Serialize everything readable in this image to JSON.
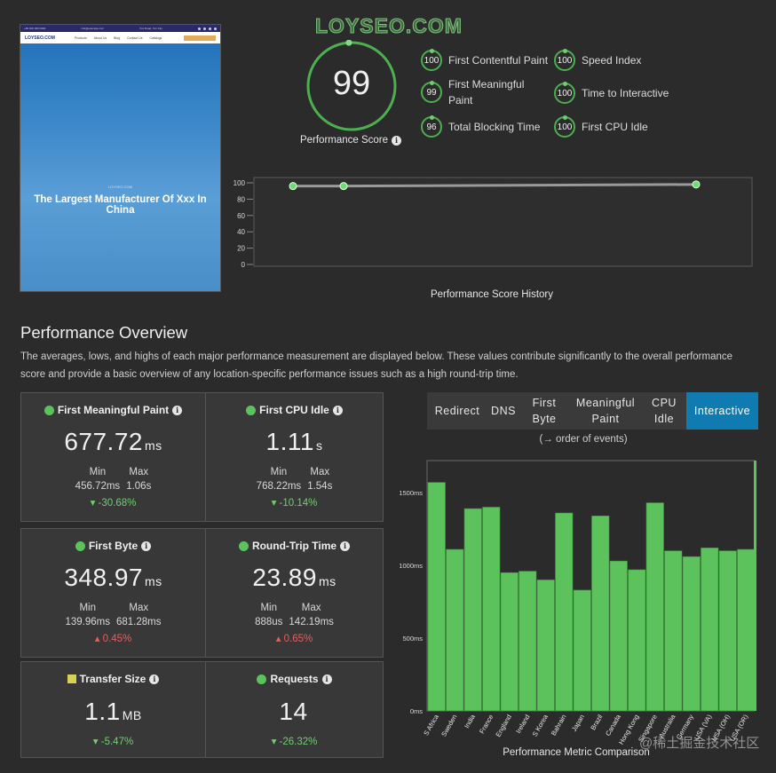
{
  "preview": {
    "topbar_left": "+86 000 000 0000",
    "topbar_mid": "info@example.com",
    "topbar_addr": "Xxx Road, Xxx City",
    "logo": "LOYSEO.COM",
    "nav": [
      "Products",
      "About Us",
      "Blog",
      "Contact Us",
      "Catalogs"
    ],
    "hero_kicker": "LOYSEO.COM",
    "hero_title": "The Largest Manufacturer Of Xxx In China"
  },
  "watermark_top": "LOYSEO.COM",
  "score": {
    "value": "99",
    "label": "Performance Score",
    "fraction": 0.99
  },
  "metrics": [
    {
      "score": "100",
      "label": "First Contentful Paint"
    },
    {
      "score": "99",
      "label": "First Meaningful Paint"
    },
    {
      "score": "96",
      "label": "Total Blocking Time"
    },
    {
      "score": "100",
      "label": "Speed Index"
    },
    {
      "score": "100",
      "label": "Time to Interactive"
    },
    {
      "score": "100",
      "label": "First CPU Idle"
    }
  ],
  "history": {
    "title": "Performance Score History",
    "yticks": [
      "100",
      "80",
      "60",
      "40",
      "20",
      "0"
    ],
    "points": [
      96,
      96,
      98
    ]
  },
  "overview": {
    "title": "Performance Overview",
    "description": "The averages, lows, and highs of each major performance measurement are displayed below. These values contribute significantly to the overall performance score and provide a basic overview of any location-specific performance issues such as a high round-trip time."
  },
  "cards": [
    {
      "title": "First Meaningful Paint",
      "value": "677.72",
      "unit": "ms",
      "min_label": "Min",
      "min": "456.72ms",
      "max_label": "Max",
      "max": "1.06s",
      "change": "▾ -30.68%",
      "trend": "down"
    },
    {
      "title": "First CPU Idle",
      "value": "1.11",
      "unit": "s",
      "min_label": "Min",
      "min": "768.22ms",
      "max_label": "Max",
      "max": "1.54s",
      "change": "▾ -10.14%",
      "trend": "down"
    },
    {
      "title": "First Byte",
      "value": "348.97",
      "unit": "ms",
      "min_label": "Min",
      "min": "139.96ms",
      "max_label": "Max",
      "max": "681.28ms",
      "change": "▴ 0.45%",
      "trend": "up"
    },
    {
      "title": "Round-Trip Time",
      "value": "23.89",
      "unit": "ms",
      "min_label": "Min",
      "min": "888us",
      "max_label": "Max",
      "max": "142.19ms",
      "change": "▴ 0.65%",
      "trend": "up"
    },
    {
      "title": "Transfer Size",
      "value": "1.1",
      "unit": "MB",
      "change": "▾ -5.47%",
      "trend": "down"
    },
    {
      "title": "Requests",
      "value": "14",
      "unit": "",
      "change": "▾ -26.32%",
      "trend": "down"
    }
  ],
  "tabs": [
    {
      "label": "Redirect",
      "active": false
    },
    {
      "label": "DNS",
      "active": false
    },
    {
      "label": "First Byte",
      "active": false
    },
    {
      "label": "Meaningful Paint",
      "active": false
    },
    {
      "label": "CPU Idle",
      "active": false
    },
    {
      "label": "Interactive",
      "active": true
    }
  ],
  "order_note": "(→ order of events)",
  "colors": {
    "accent_green": "#5cc35c",
    "tab_active": "#0f7bb0",
    "bar_green": "#5cc35c"
  },
  "chart_data": {
    "type": "bar",
    "title": "",
    "xlabel": "Performance Metric Comparison",
    "ylabel": "",
    "ylim": [
      0,
      1720
    ],
    "yticks": [
      "0ms",
      "500ms",
      "1000ms",
      "1500ms"
    ],
    "categories": [
      "S Africa",
      "Sweden",
      "India",
      "France",
      "England",
      "Ireland",
      "S Korea",
      "Bahrain",
      "Japan",
      "Brazil",
      "Canada",
      "Hong Kong",
      "Singapore",
      "Australia",
      "Germany",
      "USA (VA)",
      "USA (OH)",
      "USA (OR)"
    ],
    "values": [
      1570,
      1110,
      1390,
      1400,
      950,
      960,
      900,
      1360,
      830,
      1340,
      1030,
      970,
      1430,
      1100,
      1060,
      1120,
      1100,
      1110
    ]
  },
  "watermark_bottom": "@稀土掘金技术社区"
}
